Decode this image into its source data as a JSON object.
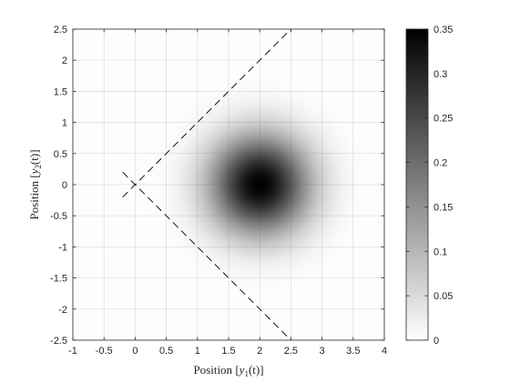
{
  "chart_data": {
    "type": "heatmap",
    "title": "",
    "xlabel_text": "Position",
    "xlabel_var": "y",
    "xlabel_sub": "1",
    "xlabel_arg": "(t)",
    "ylabel_text": "Position",
    "ylabel_var": "y",
    "ylabel_sub": "2",
    "ylabel_arg": "(t)",
    "xlim": [
      -1,
      4
    ],
    "ylim": [
      -2.5,
      2.5
    ],
    "xticks": [
      -1,
      -0.5,
      0,
      0.5,
      1,
      1.5,
      2,
      2.5,
      3,
      3.5,
      4
    ],
    "xtick_labels": [
      "-1",
      "-0.5",
      "0",
      "0.5",
      "1",
      "1.5",
      "2",
      "2.5",
      "3",
      "3.5",
      "4"
    ],
    "yticks": [
      -2.5,
      -2,
      -1.5,
      -1,
      -0.5,
      0,
      0.5,
      1,
      1.5,
      2,
      2.5
    ],
    "ytick_labels": [
      "-2.5",
      "-2",
      "-1.5",
      "-1",
      "-0.5",
      "0",
      "0.5",
      "1",
      "1.5",
      "2",
      "2.5"
    ],
    "grid": true,
    "colormap": "gray-reversed",
    "color_low": "#ffffff",
    "color_high": "#000000",
    "distribution": {
      "shape": "gaussian",
      "center": [
        2,
        0
      ],
      "sigma": 0.55,
      "peak": 0.35
    },
    "colorbar": {
      "range": [
        0,
        0.35
      ],
      "ticks": [
        0,
        0.05,
        0.1,
        0.15,
        0.2,
        0.25,
        0.3,
        0.35
      ],
      "tick_labels": [
        "0",
        "0.05",
        "0.1",
        "0.15",
        "0.2",
        "0.25",
        "0.3",
        "0.35"
      ]
    },
    "cone_lines": [
      {
        "x": [
          -0.2,
          2.5
        ],
        "y": [
          -0.2,
          2.5
        ],
        "style": "dashed",
        "color": "#000000"
      },
      {
        "x": [
          -0.2,
          2.5
        ],
        "y": [
          0.2,
          -2.5
        ],
        "style": "dashed",
        "color": "#000000"
      }
    ]
  }
}
